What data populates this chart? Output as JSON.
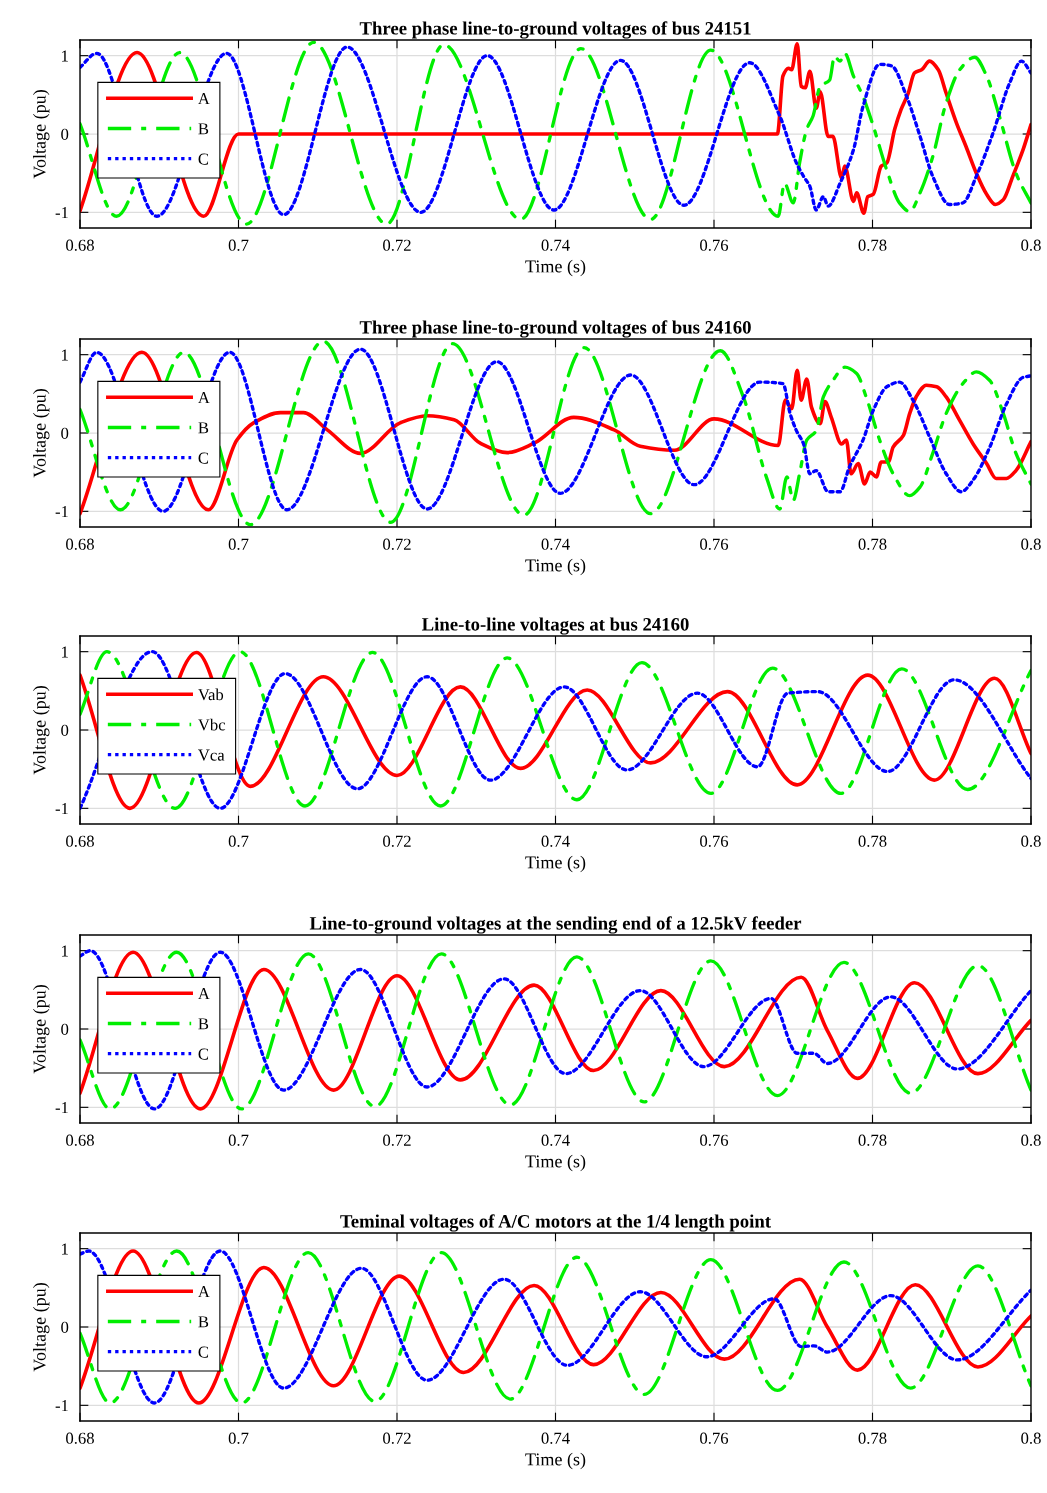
{
  "chart_data": [
    {
      "type": "line",
      "title": "Three phase line-to-ground voltages of bus 24151",
      "xlabel": "Time (s)",
      "ylabel": "Voltage (pu)",
      "xlim": [
        0.68,
        0.8
      ],
      "xticks": [
        0.68,
        0.7,
        0.72,
        0.74,
        0.76,
        0.78,
        0.8
      ],
      "ylim": [
        -1.2,
        1.2
      ],
      "yticks": [
        -1,
        0,
        1
      ],
      "grid": true,
      "legend": "left",
      "series": [
        {
          "name": "A",
          "color": "#ff0000",
          "line_style": "solid",
          "x": [
            0.68,
            0.6872,
            0.6956,
            0.7,
            0.768,
            0.7687,
            0.7694,
            0.7698,
            0.7705,
            0.771,
            0.7715,
            0.7721,
            0.7729,
            0.7734,
            0.7744,
            0.775,
            0.7761,
            0.7765,
            0.7776,
            0.778,
            0.7789,
            0.7794,
            0.7801,
            0.7811,
            0.7818,
            0.7828,
            0.7836,
            0.7845,
            0.7853,
            0.7862,
            0.7872,
            0.7883,
            0.7893,
            0.7906,
            0.7918,
            0.7931,
            0.7944,
            0.7955,
            0.7965,
            0.7977,
            0.799,
            0.8
          ],
          "values": [
            -0.98,
            1.04,
            -1.05,
            0,
            0,
            0.74,
            0.84,
            0.82,
            1.15,
            0.61,
            0.59,
            0.8,
            0.33,
            0.54,
            -0.03,
            -0.03,
            -0.56,
            -0.41,
            -0.86,
            -0.75,
            -1.01,
            -0.8,
            -0.77,
            -0.41,
            -0.37,
            0.06,
            0.31,
            0.52,
            0.78,
            0.82,
            0.93,
            0.82,
            0.52,
            0.14,
            -0.16,
            -0.5,
            -0.77,
            -0.9,
            -0.84,
            -0.54,
            -0.2,
            0.12
          ]
        },
        {
          "name": "B",
          "color": "#00ee00",
          "line_style": "dashed",
          "x": [
            0.68,
            0.6846,
            0.6926,
            0.701,
            0.7095,
            0.7187,
            0.7259,
            0.7356,
            0.7432,
            0.752,
            0.7596,
            0.7681,
            0.7689,
            0.77,
            0.7708,
            0.7717,
            0.7725,
            0.7734,
            0.7746,
            0.7752,
            0.7759,
            0.7765,
            0.7776,
            0.7788,
            0.7801,
            0.7818,
            0.7834,
            0.7847,
            0.786,
            0.7876,
            0.7893,
            0.791,
            0.7929,
            0.7944,
            0.796,
            0.7981,
            0.8
          ],
          "values": [
            0.13,
            -1.05,
            1.04,
            -1.15,
            1.17,
            -1.15,
            1.14,
            -1.09,
            1.09,
            -1.09,
            1.07,
            -1.05,
            -0.63,
            -0.88,
            -0.37,
            0.06,
            0.23,
            0.61,
            0.69,
            0.99,
            0.93,
            1.03,
            0.74,
            0.48,
            0.1,
            -0.46,
            -0.88,
            -0.99,
            -0.75,
            -0.29,
            0.4,
            0.82,
            0.98,
            0.74,
            0.23,
            -0.5,
            -0.88
          ]
        },
        {
          "name": "C",
          "color": "#0000ff",
          "line_style": "dotted",
          "x": [
            0.68,
            0.6821,
            0.6897,
            0.6985,
            0.7057,
            0.7137,
            0.723,
            0.7314,
            0.7398,
            0.7482,
            0.7562,
            0.7645,
            0.7683,
            0.7704,
            0.7713,
            0.7721,
            0.7729,
            0.7738,
            0.7744,
            0.7759,
            0.7776,
            0.7788,
            0.7809,
            0.7824,
            0.7843,
            0.786,
            0.7876,
            0.7897,
            0.7914,
            0.7931,
            0.7952,
            0.7973,
            0.7988,
            0.8
          ],
          "values": [
            0.85,
            1.03,
            -1.05,
            1.03,
            -1.03,
            1.11,
            -1.0,
            1.0,
            -0.97,
            0.94,
            -0.91,
            0.91,
            0.23,
            -0.37,
            -0.54,
            -0.67,
            -0.97,
            -0.8,
            -0.92,
            -0.63,
            -0.2,
            0.35,
            0.89,
            0.87,
            0.48,
            -0.03,
            -0.54,
            -0.9,
            -0.88,
            -0.54,
            0.01,
            0.65,
            0.93,
            0.78
          ]
        }
      ]
    },
    {
      "type": "line",
      "title": "Three phase line-to-ground voltages of bus 24160",
      "xlabel": "Time (s)",
      "ylabel": "Voltage (pu)",
      "xlim": [
        0.68,
        0.8
      ],
      "xticks": [
        0.68,
        0.7,
        0.72,
        0.74,
        0.76,
        0.78,
        0.8
      ],
      "ylim": [
        -1.2,
        1.2
      ],
      "yticks": [
        -1,
        0,
        1
      ],
      "grid": true,
      "legend": "left",
      "series": [
        {
          "name": "A",
          "color": "#ff0000",
          "line_style": "solid",
          "x": [
            0.68,
            0.6878,
            0.6962,
            0.6998,
            0.7019,
            0.7053,
            0.7082,
            0.7112,
            0.7154,
            0.7204,
            0.7238,
            0.7272,
            0.7305,
            0.7339,
            0.7373,
            0.7423,
            0.7474,
            0.7507,
            0.755,
            0.76,
            0.7681,
            0.769,
            0.7698,
            0.7705,
            0.771,
            0.7717,
            0.7723,
            0.7734,
            0.774,
            0.7748,
            0.7761,
            0.7767,
            0.7773,
            0.7782,
            0.779,
            0.7797,
            0.7805,
            0.7811,
            0.782,
            0.7826,
            0.7839,
            0.7847,
            0.7855,
            0.7868,
            0.7881,
            0.7893,
            0.791,
            0.7927,
            0.7944,
            0.7956,
            0.7969,
            0.7981,
            0.8
          ],
          "values": [
            -1.03,
            1.03,
            -0.98,
            -0.09,
            0.13,
            0.26,
            0.26,
            0.04,
            -0.26,
            0.13,
            0.22,
            0.17,
            -0.13,
            -0.25,
            -0.13,
            0.2,
            0.04,
            -0.17,
            -0.22,
            0.18,
            -0.16,
            0.42,
            0.31,
            0.8,
            0.42,
            0.69,
            0.33,
            0.12,
            0.4,
            0.2,
            -0.14,
            -0.09,
            -0.52,
            -0.39,
            -0.65,
            -0.5,
            -0.56,
            -0.37,
            -0.37,
            -0.18,
            -0.03,
            0.25,
            0.46,
            0.61,
            0.59,
            0.46,
            0.16,
            -0.14,
            -0.39,
            -0.58,
            -0.58,
            -0.48,
            -0.11
          ]
        },
        {
          "name": "B",
          "color": "#00ee00",
          "line_style": "dashed",
          "x": [
            0.68,
            0.6851,
            0.6931,
            0.7015,
            0.7107,
            0.7192,
            0.727,
            0.736,
            0.7436,
            0.752,
            0.7608,
            0.7637,
            0.7666,
            0.7683,
            0.7692,
            0.77,
            0.7708,
            0.7717,
            0.7729,
            0.7738,
            0.775,
            0.7765,
            0.778,
            0.7792,
            0.7809,
            0.7826,
            0.7847,
            0.786,
            0.7876,
            0.7893,
            0.7914,
            0.7931,
            0.7948,
            0.7965,
            0.7981,
            0.8
          ],
          "values": [
            0.3,
            -0.98,
            1.03,
            -1.17,
            1.17,
            -1.14,
            1.14,
            -1.05,
            1.09,
            -1.03,
            1.05,
            0.46,
            -0.56,
            -0.97,
            -0.56,
            -0.86,
            -0.52,
            -0.09,
            0.03,
            0.46,
            0.67,
            0.84,
            0.76,
            0.46,
            -0.09,
            -0.52,
            -0.8,
            -0.69,
            -0.26,
            0.25,
            0.63,
            0.78,
            0.67,
            0.25,
            -0.26,
            -0.65
          ]
        },
        {
          "name": "C",
          "color": "#0000ff",
          "line_style": "dotted",
          "x": [
            0.68,
            0.6821,
            0.6905,
            0.6989,
            0.7061,
            0.7154,
            0.7238,
            0.7326,
            0.7406,
            0.7495,
            0.7575,
            0.7658,
            0.7687,
            0.7696,
            0.7704,
            0.7713,
            0.7721,
            0.7729,
            0.7744,
            0.7759,
            0.7771,
            0.7788,
            0.7801,
            0.7818,
            0.7834,
            0.7851,
            0.7872,
            0.7893,
            0.7912,
            0.7927,
            0.7948,
            0.7969,
            0.799,
            0.8
          ],
          "values": [
            0.65,
            1.03,
            -1.0,
            1.03,
            -0.98,
            1.07,
            -0.97,
            0.91,
            -0.77,
            0.74,
            -0.66,
            0.65,
            0.63,
            0.25,
            0.03,
            -0.14,
            -0.52,
            -0.48,
            -0.75,
            -0.75,
            -0.43,
            -0.09,
            0.29,
            0.59,
            0.65,
            0.42,
            -0.05,
            -0.52,
            -0.75,
            -0.6,
            -0.18,
            0.37,
            0.71,
            0.73
          ]
        }
      ]
    },
    {
      "type": "line",
      "title": "Line-to-line voltages at bus 24160",
      "xlabel": "Time (s)",
      "ylabel": "Voltage (pu)",
      "xlim": [
        0.68,
        0.8
      ],
      "xticks": [
        0.68,
        0.7,
        0.72,
        0.74,
        0.76,
        0.78,
        0.8
      ],
      "ylim": [
        -1.2,
        1.2
      ],
      "yticks": [
        -1,
        0,
        1
      ],
      "grid": true,
      "legend": "left",
      "series": [
        {
          "name": "Vab",
          "color": "#ff0000",
          "line_style": "solid",
          "x": [
            0.68,
            0.6863,
            0.6947,
            0.7015,
            0.7107,
            0.72,
            0.728,
            0.7356,
            0.744,
            0.752,
            0.7617,
            0.7705,
            0.7794,
            0.7878,
            0.7954,
            0.8
          ],
          "values": [
            0.7,
            -1.0,
            0.99,
            -0.72,
            0.68,
            -0.58,
            0.55,
            -0.49,
            0.51,
            -0.42,
            0.49,
            -0.7,
            0.7,
            -0.64,
            0.66,
            -0.3
          ]
        },
        {
          "name": "Vbc",
          "color": "#00ee00",
          "line_style": "dashed",
          "x": [
            0.68,
            0.6834,
            0.692,
            0.7002,
            0.7084,
            0.7169,
            0.7255,
            0.7339,
            0.7427,
            0.7509,
            0.7596,
            0.7674,
            0.776,
            0.7837,
            0.792,
            0.8
          ],
          "values": [
            0.2,
            1.0,
            -1.0,
            1.0,
            -0.97,
            0.99,
            -0.97,
            0.92,
            -0.89,
            0.86,
            -0.81,
            0.79,
            -0.81,
            0.78,
            -0.76,
            0.76
          ]
        },
        {
          "name": "Vca",
          "color": "#0000ff",
          "line_style": "dotted",
          "x": [
            0.68,
            0.6891,
            0.6977,
            0.7059,
            0.715,
            0.7238,
            0.7318,
            0.7411,
            0.749,
            0.7579,
            0.7655,
            0.7693,
            0.7731,
            0.7819,
            0.7903,
            0.8
          ],
          "values": [
            -1.0,
            1.0,
            -1.0,
            0.72,
            -0.75,
            0.68,
            -0.64,
            0.55,
            -0.51,
            0.47,
            -0.47,
            0.47,
            0.49,
            -0.53,
            0.64,
            -0.62
          ]
        }
      ]
    },
    {
      "type": "line",
      "title": "Line-to-ground voltages at the sending end of a 12.5kV feeder",
      "xlabel": "Time (s)",
      "ylabel": "Voltage (pu)",
      "xlim": [
        0.68,
        0.8
      ],
      "xticks": [
        0.68,
        0.7,
        0.72,
        0.74,
        0.76,
        0.78,
        0.8
      ],
      "ylim": [
        -1.2,
        1.2
      ],
      "yticks": [
        -1,
        0,
        1
      ],
      "grid": true,
      "legend": "left",
      "series": [
        {
          "name": "A",
          "color": "#ff0000",
          "line_style": "solid",
          "x": [
            0.68,
            0.6867,
            0.6952,
            0.7032,
            0.712,
            0.72,
            0.728,
            0.7373,
            0.7448,
            0.7533,
            0.7613,
            0.771,
            0.7743,
            0.7781,
            0.7853,
            0.7933,
            0.8
          ],
          "values": [
            -0.82,
            0.98,
            -1.02,
            0.76,
            -0.78,
            0.68,
            -0.65,
            0.56,
            -0.53,
            0.49,
            -0.48,
            0.66,
            -0.02,
            -0.63,
            0.59,
            -0.57,
            0.11
          ]
        },
        {
          "name": "B",
          "color": "#00ee00",
          "line_style": "dashed",
          "x": [
            0.68,
            0.6838,
            0.6922,
            0.7004,
            0.7088,
            0.7172,
            0.7256,
            0.7343,
            0.7427,
            0.7512,
            0.7596,
            0.768,
            0.7764,
            0.7848,
            0.7933,
            0.8
          ],
          "values": [
            -0.14,
            -1.02,
            0.98,
            -1.02,
            0.96,
            -0.99,
            0.96,
            -0.97,
            0.92,
            -0.93,
            0.87,
            -0.85,
            0.85,
            -0.82,
            0.81,
            -0.78
          ]
        },
        {
          "name": "C",
          "color": "#0000ff",
          "line_style": "dotted",
          "x": [
            0.68,
            0.6813,
            0.6894,
            0.6977,
            0.7057,
            0.7154,
            0.7238,
            0.7335,
            0.7413,
            0.7507,
            0.7587,
            0.7672,
            0.7705,
            0.7726,
            0.7743,
            0.7823,
            0.7907,
            0.8
          ],
          "values": [
            0.93,
            1.0,
            -1.02,
            0.98,
            -0.78,
            0.76,
            -0.74,
            0.64,
            -0.57,
            0.49,
            -0.48,
            0.39,
            -0.31,
            -0.31,
            -0.44,
            0.41,
            -0.51,
            0.49
          ]
        }
      ]
    },
    {
      "type": "line",
      "title": "Teminal voltages of A/C motors at the 1/4 length point",
      "xlabel": "Time (s)",
      "ylabel": "Voltage (pu)",
      "xlim": [
        0.68,
        0.8
      ],
      "xticks": [
        0.68,
        0.7,
        0.72,
        0.74,
        0.76,
        0.78,
        0.8
      ],
      "ylim": [
        -1.2,
        1.2
      ],
      "yticks": [
        -1,
        0,
        1
      ],
      "grid": true,
      "legend": "left",
      "series": [
        {
          "name": "A",
          "color": "#ff0000",
          "line_style": "solid",
          "x": [
            0.68,
            0.6867,
            0.695,
            0.7032,
            0.712,
            0.7203,
            0.7284,
            0.7373,
            0.7448,
            0.7533,
            0.7613,
            0.7708,
            0.7743,
            0.7781,
            0.7854,
            0.7933,
            0.8
          ],
          "values": [
            -0.78,
            0.97,
            -0.97,
            0.76,
            -0.75,
            0.65,
            -0.58,
            0.53,
            -0.48,
            0.44,
            -0.41,
            0.61,
            0.0,
            -0.55,
            0.54,
            -0.51,
            0.14
          ]
        },
        {
          "name": "B",
          "color": "#00ee00",
          "line_style": "dashed",
          "x": [
            0.68,
            0.6838,
            0.6922,
            0.7004,
            0.7088,
            0.7172,
            0.7256,
            0.7343,
            0.7427,
            0.7512,
            0.7596,
            0.768,
            0.7764,
            0.7848,
            0.7933,
            0.8
          ],
          "values": [
            -0.08,
            -0.97,
            0.97,
            -0.97,
            0.95,
            -0.95,
            0.95,
            -0.92,
            0.89,
            -0.86,
            0.86,
            -0.81,
            0.83,
            -0.78,
            0.78,
            -0.75
          ]
        },
        {
          "name": "C",
          "color": "#0000ff",
          "line_style": "dotted",
          "x": [
            0.68,
            0.6811,
            0.6894,
            0.6977,
            0.7057,
            0.7155,
            0.7238,
            0.7335,
            0.7415,
            0.7507,
            0.7591,
            0.7676,
            0.771,
            0.7726,
            0.7743,
            0.7823,
            0.7907,
            0.8
          ],
          "values": [
            0.93,
            0.97,
            -0.97,
            0.97,
            -0.78,
            0.75,
            -0.68,
            0.61,
            -0.49,
            0.45,
            -0.38,
            0.36,
            -0.25,
            -0.24,
            -0.32,
            0.4,
            -0.42,
            0.47
          ]
        }
      ]
    }
  ]
}
